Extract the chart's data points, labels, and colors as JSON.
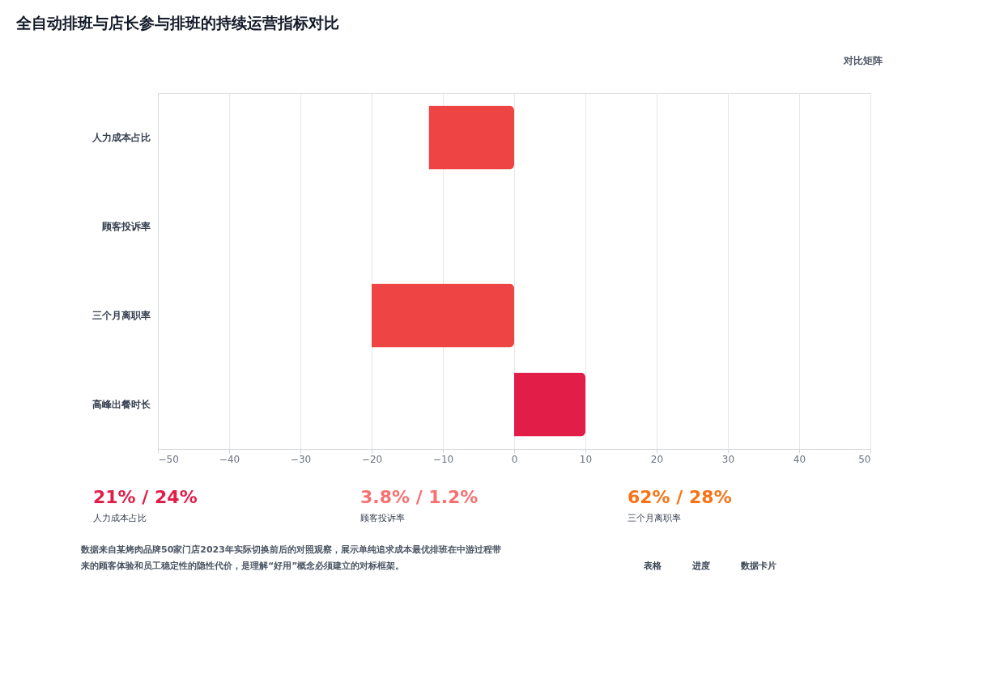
{
  "chart_data": {
    "type": "bar",
    "orientation": "horizontal",
    "title": "全自动排班与店长参与排班的持续运营指标对比",
    "subtitle": "对比矩阵",
    "categories": [
      "人力成本占比",
      "顾客投诉率",
      "三个月离职率",
      "高峰出餐时长"
    ],
    "values": [
      -12,
      null,
      -20,
      10
    ],
    "colors": [
      "#ef4444",
      "#ef4444",
      "#ef4444",
      "#e11d48"
    ],
    "xlim": [
      -50,
      50
    ],
    "xticks": [
      -50,
      -40,
      -30,
      -20,
      -10,
      0,
      10,
      20,
      30,
      40,
      50
    ],
    "grid": "x",
    "annotations": [
      "21% / 24%",
      "人力成本占比",
      "3.8% / 1.2%",
      "顾客投诉率",
      "62% / 28%",
      "三个月离职率",
      "数据来自某烤肉品牌50家门店2023年实际切换前后的对照观察，展示单纯追求成本最优排班在中游过程带来的顾客体验和员工稳定性的隐性代价，是理解“好用”概念必须建立的对标框架。",
      "表格",
      "进度",
      "数据卡片"
    ]
  }
}
